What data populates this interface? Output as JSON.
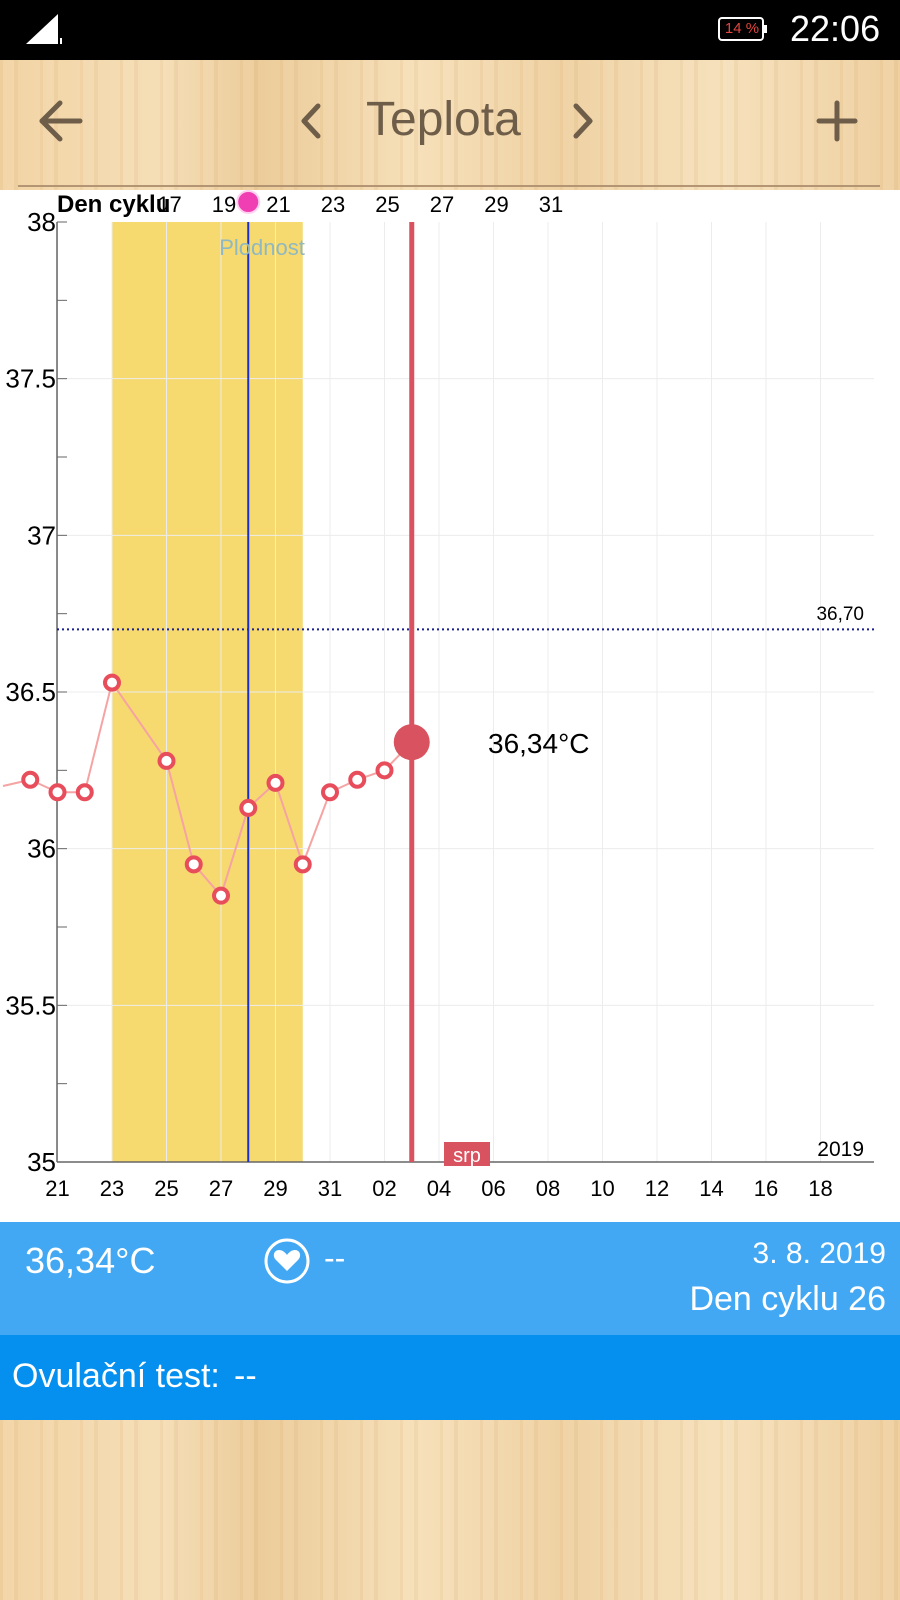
{
  "status_bar": {
    "battery": "14 %",
    "time": "22:06",
    "signal_icon": "signal-icon",
    "battery_icon": "battery-icon"
  },
  "toolbar": {
    "title": "Teplota",
    "back_icon": "back-arrow-icon",
    "prev_icon": "chevron-left-icon",
    "next_icon": "chevron-right-icon",
    "add_icon": "plus-icon"
  },
  "chart_data": {
    "type": "line",
    "top_axis_label": "Den cyklu",
    "cycle_day_ticks": [
      "17",
      "19",
      "21",
      "23",
      "25",
      "27",
      "29",
      "31"
    ],
    "x_ticks": [
      "21",
      "23",
      "25",
      "27",
      "29",
      "31",
      "02",
      "04",
      "06",
      "08",
      "10",
      "12",
      "14",
      "16",
      "18"
    ],
    "y_ticks": [
      "35",
      "35.5",
      "36",
      "36.5",
      "37",
      "37.5",
      "38"
    ],
    "ylim": [
      35,
      38
    ],
    "year_label": "2019",
    "month_label": "srp",
    "fertile_label": "Plodnost",
    "coverline_label": "36,70",
    "coverline_value": 36.7,
    "highlight_label": "36,34°C",
    "series": [
      {
        "x": [
          "19.7.",
          "20.7.",
          "21.7.",
          "22.7.",
          "23.7.",
          "25.7.",
          "26.7.",
          "27.7.",
          "28.7.",
          "29.7.",
          "30.7.",
          "31.7.",
          "1.8.",
          "2.8.",
          "3.8."
        ],
        "y": [
          36.2,
          36.22,
          36.18,
          36.18,
          36.53,
          36.28,
          35.95,
          35.85,
          36.13,
          36.21,
          35.95,
          36.18,
          36.22,
          36.25,
          36.34
        ]
      }
    ],
    "colors": {
      "line": "#f6a3a3",
      "marker": "#e84d5b",
      "fertile": "#f6da6f",
      "current": "#d9525f",
      "ovulation": "#1a2fc9",
      "coverline": "#1a2090"
    },
    "grid": true
  },
  "info_bar": {
    "temperature": "36,34°C",
    "heart_icon": "heart-icon",
    "pulse": "--",
    "date": "3. 8. 2019",
    "cycle_day": "Den cyklu 26"
  },
  "ovulation_bar": {
    "label": "Ovulační test:",
    "value": "--"
  }
}
